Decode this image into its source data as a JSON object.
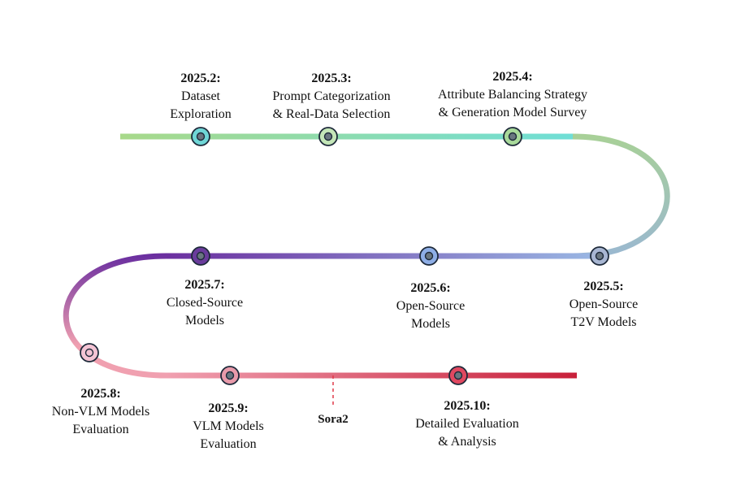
{
  "milestones": [
    {
      "date": "2025.2:",
      "text": "Dataset\nExploration",
      "fill": "#6fd6d6"
    },
    {
      "date": "2025.3:",
      "text": "Prompt Categorization\n& Real-Data Selection",
      "fill": "#c4e6b8"
    },
    {
      "date": "2025.4:",
      "text": "Attribute Balancing Strategy\n& Generation Model Survey",
      "fill": "#a8d99a"
    },
    {
      "date": "2025.5:",
      "text": "Open-Source\nT2V Models",
      "fill": "#a8b6d2"
    },
    {
      "date": "2025.6:",
      "text": "Open-Source\nModels",
      "fill": "#8eaee6"
    },
    {
      "date": "2025.7:",
      "text": "Closed-Source\nModels",
      "fill": "#6a3c9c"
    },
    {
      "date": "2025.8:",
      "text": "Non-VLM Models\nEvaluation",
      "fill": "#f4c4d4"
    },
    {
      "date": "2025.9:",
      "text": "VLM Models\nEvaluation",
      "fill": "#e89aaa"
    },
    {
      "date": "2025.10:",
      "text": "Detailed Evaluation\n& Analysis",
      "fill": "#e04860"
    }
  ],
  "marker": {
    "label": "Sora2",
    "color": "#e03a4a"
  },
  "path_colors": {
    "row1": [
      "#a8d98a",
      "#6fded6"
    ],
    "curve_right": [
      "#a8d098",
      "#9ab8d0"
    ],
    "row2": [
      "#6b2fa0",
      "#9ab8e4"
    ],
    "curve_left": "#6b2fa0",
    "row3": [
      "#f0a0b0",
      "#c8203a"
    ]
  }
}
